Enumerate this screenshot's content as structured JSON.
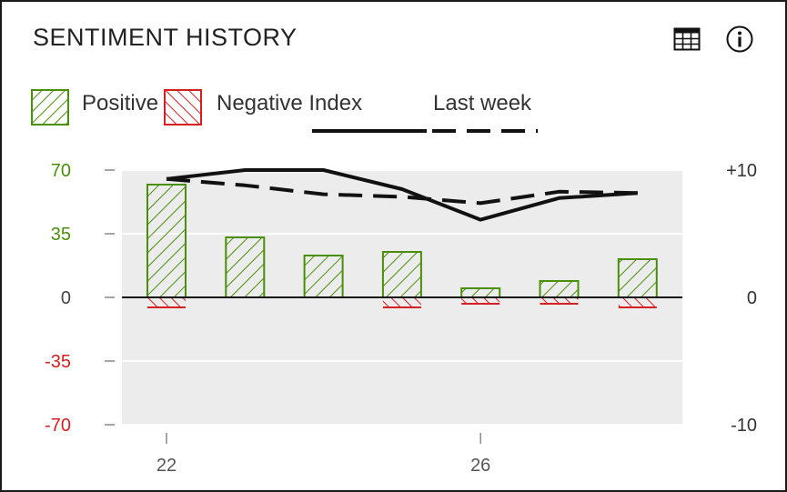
{
  "header": {
    "title": "SENTIMENT HISTORY",
    "table_icon": "table-view-icon",
    "info_icon": "info-icon"
  },
  "legend": {
    "positive_label": "Positive",
    "negative_label": "Negative Index",
    "last_week_label": "Last week"
  },
  "colors": {
    "positive": "#4a8f0a",
    "negative": "#d42020",
    "line": "#111111",
    "plot_bg": "#ececec"
  },
  "chart_data": {
    "type": "bar",
    "x_tick_labels": [
      "22",
      "26"
    ],
    "x": [
      22,
      23,
      24,
      25,
      26,
      27,
      28
    ],
    "left_axis": {
      "ylim": [
        -70,
        70
      ],
      "ticks": [
        70,
        35,
        0,
        -35,
        -70
      ],
      "tick_labels": [
        "70",
        "35",
        "0",
        "-35",
        "-70"
      ]
    },
    "right_axis": {
      "ylim": [
        -10,
        10
      ],
      "ticks": [
        10,
        0,
        -10
      ],
      "tick_labels": [
        "+10",
        "0",
        "-10"
      ]
    },
    "series": [
      {
        "name": "Positive",
        "kind": "bar",
        "axis": "left",
        "values": [
          62,
          33,
          23,
          25,
          5,
          9,
          21
        ]
      },
      {
        "name": "Negative",
        "kind": "bar",
        "axis": "left",
        "values": [
          -5,
          0,
          0,
          -5,
          -3,
          -3,
          -5
        ]
      },
      {
        "name": "Index",
        "kind": "line",
        "style": "solid",
        "axis": "right",
        "values": [
          9.3,
          10,
          10,
          8.5,
          6.1,
          7.8,
          8.2
        ]
      },
      {
        "name": "Last week",
        "kind": "line",
        "style": "dashed",
        "axis": "right",
        "values": [
          9.3,
          8.8,
          8.1,
          7.9,
          7.4,
          8.3,
          8.2
        ]
      }
    ],
    "grid": true
  }
}
